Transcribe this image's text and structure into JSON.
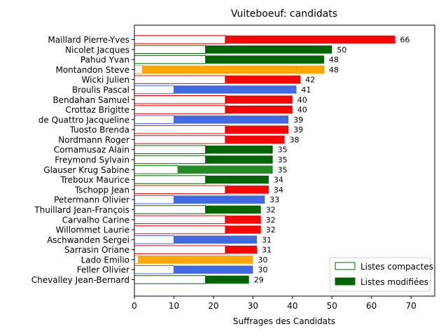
{
  "chart_data": {
    "type": "bar",
    "orientation": "horizontal",
    "title": "Vuiteboeuf: candidats",
    "xlabel": "Suffrages des Candidats",
    "ylabel": "",
    "xlim": [
      0,
      76
    ],
    "xticks": [
      "0",
      "10",
      "20",
      "30",
      "40",
      "50",
      "60",
      "70"
    ],
    "grid": false,
    "legend_position": "lower right",
    "legend": [
      {
        "label": "Listes compactes",
        "style": "outline",
        "color": "#006400"
      },
      {
        "label": "Listes modifiées",
        "style": "filled",
        "color": "#006400"
      }
    ],
    "categories": [
      "Maillard Pierre-Yves",
      "Nicolet Jacques",
      "Pahud Yvan",
      "Montandon Steve",
      "Wicki Julien",
      "Broulis Pascal",
      "Bendahan Samuel",
      "Crottaz Brigitte",
      "de Quattro Jacqueline",
      "Tuosto Brenda",
      "Nordmann Roger",
      "Cornamusaz Alain",
      "Freymond Sylvain",
      "Glauser Krug Sabine",
      "Treboux Maurice",
      "Tschopp Jean",
      "Petermann Olivier",
      "Thuillard Jean-François",
      "Carvalho Carine",
      "Willommet Laurie",
      "Aschwanden Sergei",
      "Sarrasin Oriane",
      "Lado Emilio",
      "Feller Olivier",
      "Chevalley Jean-Bernard"
    ],
    "series": [
      {
        "name": "Listes compactes",
        "values": [
          23,
          18,
          18,
          2,
          23,
          10,
          23,
          23,
          10,
          23,
          23,
          18,
          18,
          11,
          18,
          23,
          10,
          18,
          23,
          23,
          10,
          23,
          1,
          10,
          18
        ]
      },
      {
        "name": "Listes modifiées",
        "values": [
          43,
          32,
          30,
          46,
          19,
          31,
          17,
          17,
          29,
          16,
          15,
          17,
          17,
          24,
          16,
          11,
          23,
          14,
          9,
          9,
          21,
          8,
          29,
          20,
          11
        ]
      }
    ],
    "totals": [
      "66",
      "50",
      "48",
      "48",
      "42",
      "41",
      "40",
      "40",
      "39",
      "39",
      "38",
      "35",
      "35",
      "35",
      "34",
      "34",
      "33",
      "32",
      "32",
      "32",
      "31",
      "31",
      "30",
      "30",
      "29"
    ],
    "colors": [
      "#ff0000",
      "#006400",
      "#006400",
      "#ffa500",
      "#ff0000",
      "#4169e1",
      "#ff0000",
      "#ff0000",
      "#4169e1",
      "#ff0000",
      "#ff0000",
      "#006400",
      "#006400",
      "#228b22",
      "#006400",
      "#ff0000",
      "#4169e1",
      "#006400",
      "#ff0000",
      "#ff0000",
      "#4169e1",
      "#ff0000",
      "#ffa500",
      "#4169e1",
      "#006400"
    ]
  }
}
